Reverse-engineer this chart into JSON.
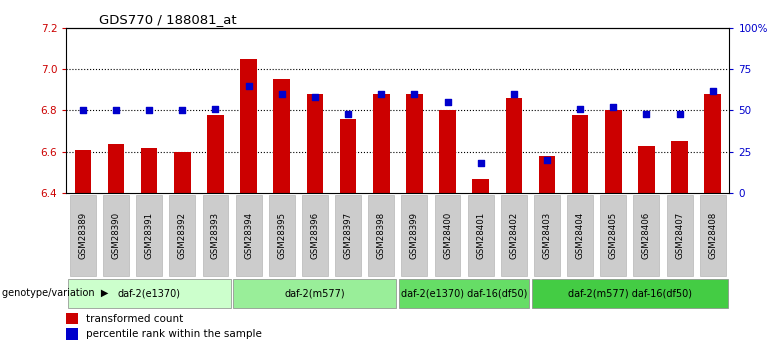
{
  "title": "GDS770 / 188081_at",
  "samples": [
    "GSM28389",
    "GSM28390",
    "GSM28391",
    "GSM28392",
    "GSM28393",
    "GSM28394",
    "GSM28395",
    "GSM28396",
    "GSM28397",
    "GSM28398",
    "GSM28399",
    "GSM28400",
    "GSM28401",
    "GSM28402",
    "GSM28403",
    "GSM28404",
    "GSM28405",
    "GSM28406",
    "GSM28407",
    "GSM28408"
  ],
  "bar_values": [
    6.61,
    6.64,
    6.62,
    6.6,
    6.78,
    7.05,
    6.95,
    6.88,
    6.76,
    6.88,
    6.88,
    6.8,
    6.47,
    6.86,
    6.58,
    6.78,
    6.8,
    6.63,
    6.65,
    6.88
  ],
  "dot_values": [
    50,
    50,
    50,
    50,
    51,
    65,
    60,
    58,
    48,
    60,
    60,
    55,
    18,
    60,
    20,
    51,
    52,
    48,
    48,
    62
  ],
  "ylim_left": [
    6.4,
    7.2
  ],
  "ylim_right": [
    0,
    100
  ],
  "yticks_left": [
    6.4,
    6.6,
    6.8,
    7.0,
    7.2
  ],
  "yticks_right": [
    0,
    25,
    50,
    75,
    100
  ],
  "ytick_labels_right": [
    "0",
    "25",
    "50",
    "75",
    "100%"
  ],
  "hlines": [
    6.6,
    6.8,
    7.0
  ],
  "bar_color": "#cc0000",
  "dot_color": "#0000cc",
  "bar_width": 0.5,
  "groups": [
    {
      "label": "daf-2(e1370)",
      "start": 0,
      "end": 5,
      "color": "#ccffcc"
    },
    {
      "label": "daf-2(m577)",
      "start": 5,
      "end": 10,
      "color": "#99ee99"
    },
    {
      "label": "daf-2(e1370) daf-16(df50)",
      "start": 10,
      "end": 14,
      "color": "#66dd66"
    },
    {
      "label": "daf-2(m577) daf-16(df50)",
      "start": 14,
      "end": 20,
      "color": "#44cc44"
    }
  ],
  "genotype_label": "genotype/variation",
  "legend_items": [
    {
      "label": "transformed count",
      "color": "#cc0000"
    },
    {
      "label": "percentile rank within the sample",
      "color": "#0000cc"
    }
  ],
  "left_tick_color": "#cc0000",
  "right_tick_color": "#0000cc",
  "bg_color": "#ffffff",
  "sample_box_color": "#cccccc",
  "grid_color": "#000000"
}
